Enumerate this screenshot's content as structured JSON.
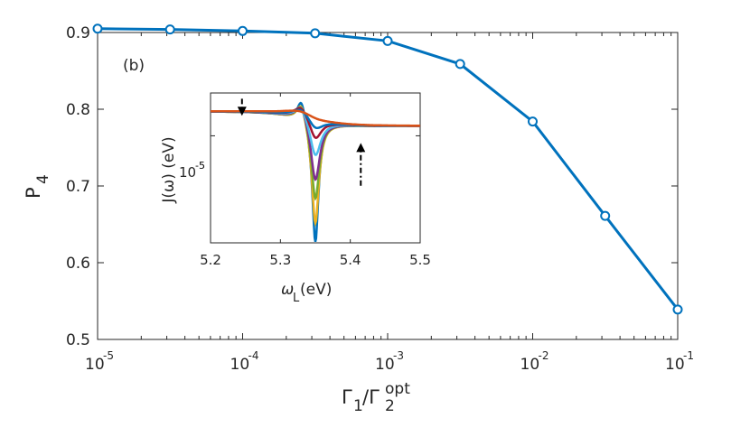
{
  "chart_data": [
    {
      "type": "line",
      "panel_label": "(b)",
      "x_scale": "log",
      "x": [
        1e-05,
        3.16e-05,
        0.0001,
        0.000316,
        0.001,
        0.00316,
        0.01,
        0.0316,
        0.1
      ],
      "series": [
        {
          "name": "P4",
          "color": "#0072BD",
          "marker": "circle",
          "values": [
            0.905,
            0.904,
            0.902,
            0.899,
            0.889,
            0.859,
            0.784,
            0.661,
            0.539
          ]
        }
      ],
      "xlim": [
        1e-05,
        0.1
      ],
      "ylim": [
        0.5,
        0.9
      ],
      "y_ticks": [
        0.5,
        0.6,
        0.7,
        0.8,
        0.9
      ],
      "y_tick_labels": [
        "0.5",
        "0.6",
        "0.7",
        "0.8",
        "0.9"
      ],
      "x_ticks": [
        1e-05,
        0.0001,
        0.001,
        0.01,
        0.1
      ],
      "x_tick_base": [
        "10",
        "10",
        "10",
        "10",
        "10"
      ],
      "x_tick_exp": [
        "-5",
        "-4",
        "-3",
        "-2",
        "-1"
      ],
      "ylabel_main": "P",
      "ylabel_sub": "4",
      "xlabel_g1": "Γ",
      "xlabel_g1_sub": "1",
      "xlabel_slash": "/Γ",
      "xlabel_g2_sub": "2",
      "xlabel_g2_sup": "opt"
    },
    {
      "type": "line",
      "role": "inset",
      "y_scale": "log",
      "xlim": [
        5.2,
        5.5
      ],
      "ylim_log10": [
        -5.75,
        -4.7
      ],
      "x_ticks": [
        5.2,
        5.3,
        5.4,
        5.5
      ],
      "x_tick_labels": [
        "5.2",
        "5.3",
        "5.4",
        "5.5"
      ],
      "y_tick_base": "10",
      "y_tick_exp": "-5",
      "ylabel": "J(ω) (eV)",
      "xlabel_main": "ω",
      "xlabel_sub": "L",
      "xlabel_unit": " (eV)",
      "resonance": {
        "peak_x": 5.33,
        "dip_x": 5.35,
        "baseline_log10": -4.88
      },
      "series": [
        {
          "name": "curve-1",
          "color": "#0072BD",
          "peak_log10": -4.72,
          "dip_log10": -5.75,
          "width": 0.007
        },
        {
          "name": "curve-2",
          "color": "#EDB120",
          "peak_log10": -4.74,
          "dip_log10": -5.62,
          "width": 0.008
        },
        {
          "name": "curve-3",
          "color": "#77AC30",
          "peak_log10": -4.75,
          "dip_log10": -5.45,
          "width": 0.009
        },
        {
          "name": "curve-4",
          "color": "#7E2F8E",
          "peak_log10": -4.76,
          "dip_log10": -5.32,
          "width": 0.01
        },
        {
          "name": "curve-5",
          "color": "#4DBEEE",
          "peak_log10": -4.78,
          "dip_log10": -5.15,
          "width": 0.012
        },
        {
          "name": "curve-6",
          "color": "#A2142F",
          "peak_log10": -4.79,
          "dip_log10": -5.03,
          "width": 0.013
        },
        {
          "name": "curve-7",
          "color": "#0072BD",
          "peak_log10": -4.81,
          "dip_log10": -4.96,
          "width": 0.016
        },
        {
          "name": "curve-8",
          "color": "#D95319",
          "peak_log10": -4.83,
          "dip_log10": -4.9,
          "width": 0.028
        }
      ],
      "arrows": [
        {
          "name": "arrow-down",
          "x": 5.245,
          "from_log10": -4.74,
          "to_log10": -4.86
        },
        {
          "name": "arrow-up",
          "x": 5.415,
          "from_log10": -5.35,
          "to_log10": -5.05
        }
      ]
    }
  ]
}
